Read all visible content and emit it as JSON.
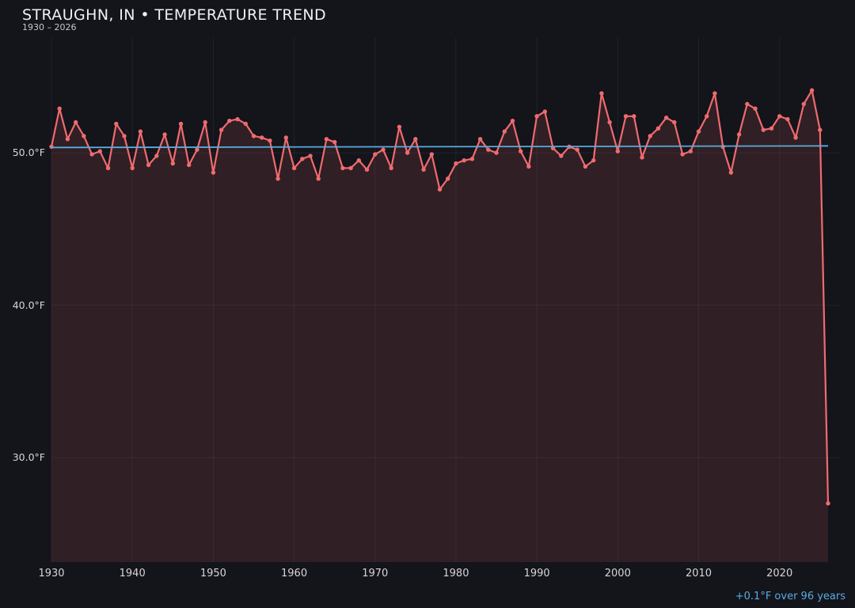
{
  "header": {
    "title": "STRAUGHN, IN • TEMPERATURE TREND",
    "subtitle": "1930 – 2026"
  },
  "footer": {
    "trend_note": "+0.1°F over 96 years"
  },
  "chart_data": {
    "type": "line",
    "title": "STRAUGHN, IN • TEMPERATURE TREND",
    "subtitle": "1930 – 2026",
    "unit": "°F",
    "grid": true,
    "legend": false,
    "ylim": [
      23.1,
      57.5
    ],
    "xlim": [
      1930,
      2026
    ],
    "years": [
      1930,
      1931,
      1932,
      1933,
      1934,
      1935,
      1936,
      1937,
      1938,
      1939,
      1940,
      1941,
      1942,
      1943,
      1944,
      1945,
      1946,
      1947,
      1948,
      1949,
      1950,
      1951,
      1952,
      1953,
      1954,
      1955,
      1956,
      1957,
      1958,
      1959,
      1960,
      1961,
      1962,
      1963,
      1964,
      1965,
      1966,
      1967,
      1968,
      1969,
      1970,
      1971,
      1972,
      1973,
      1974,
      1975,
      1976,
      1977,
      1978,
      1979,
      1980,
      1981,
      1982,
      1983,
      1984,
      1985,
      1986,
      1987,
      1988,
      1989,
      1990,
      1991,
      1992,
      1993,
      1994,
      1995,
      1996,
      1997,
      1998,
      1999,
      2000,
      2001,
      2002,
      2003,
      2004,
      2005,
      2006,
      2007,
      2008,
      2009,
      2010,
      2011,
      2012,
      2013,
      2014,
      2015,
      2016,
      2017,
      2018,
      2019,
      2020,
      2021,
      2022,
      2023,
      2024,
      2025,
      2026
    ],
    "values": [
      50.4,
      52.9,
      50.9,
      52.0,
      51.1,
      49.9,
      50.1,
      49.0,
      51.9,
      51.1,
      49.0,
      51.4,
      49.2,
      49.8,
      51.2,
      49.3,
      51.9,
      49.2,
      50.2,
      52.0,
      48.7,
      51.5,
      52.1,
      52.2,
      51.9,
      51.1,
      51.0,
      50.8,
      48.3,
      51.0,
      49.0,
      49.6,
      49.8,
      48.3,
      50.9,
      50.7,
      49.0,
      49.0,
      49.5,
      48.9,
      49.9,
      50.2,
      49.0,
      51.7,
      50.0,
      50.9,
      48.9,
      49.9,
      47.6,
      48.3,
      49.3,
      49.5,
      49.6,
      50.9,
      50.2,
      50.0,
      51.4,
      52.1,
      50.1,
      49.1,
      52.4,
      52.7,
      50.3,
      49.8,
      50.4,
      50.2,
      49.1,
      49.5,
      53.9,
      52.0,
      50.1,
      52.4,
      52.4,
      49.7,
      51.1,
      51.6,
      52.3,
      52.0,
      49.9,
      50.1,
      51.4,
      52.4,
      53.9,
      50.4,
      48.7,
      51.2,
      53.2,
      52.9,
      51.5,
      51.6,
      52.4,
      52.2,
      51.0,
      53.2,
      54.1,
      51.5,
      27.0
    ],
    "xticks": [
      {
        "year": 1930,
        "label": "1930"
      },
      {
        "year": 1940,
        "label": "1940"
      },
      {
        "year": 1950,
        "label": "1950"
      },
      {
        "year": 1960,
        "label": "1960"
      },
      {
        "year": 1970,
        "label": "1970"
      },
      {
        "year": 1980,
        "label": "1980"
      },
      {
        "year": 1990,
        "label": "1990"
      },
      {
        "year": 2000,
        "label": "2000"
      },
      {
        "year": 2010,
        "label": "2010"
      },
      {
        "year": 2020,
        "label": "2020"
      }
    ],
    "yticks": [
      {
        "value": 50,
        "label": "50.0°F"
      },
      {
        "value": 40,
        "label": "40.0°F"
      },
      {
        "value": 30,
        "label": "30.0°F"
      }
    ],
    "trend_line": {
      "start_value": 50.35,
      "end_value": 50.45,
      "label": "+0.1°F over 96 years"
    },
    "colors": {
      "background": "#14141b",
      "line": "#ef6b6e",
      "marker": "#ef6b6e",
      "fill": "rgba(239,107,110,0.13)",
      "trend": "#5aabdc",
      "grid": "rgba(255,255,255,0.06)",
      "footer_text": "#58ade4"
    }
  }
}
